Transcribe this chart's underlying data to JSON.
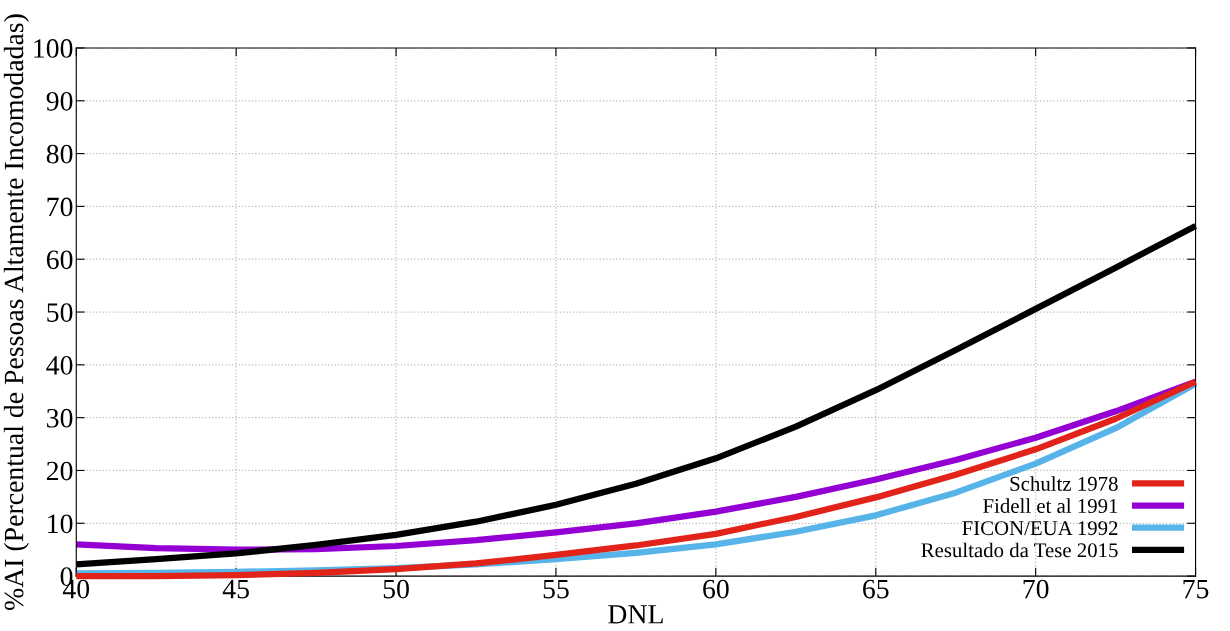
{
  "chart_data": {
    "type": "line",
    "xlabel": "DNL",
    "ylabel": "%AI (Percentual de Pessoas Altamente Incomodadas)",
    "x": [
      40,
      42.5,
      45,
      47.5,
      50,
      52.5,
      55,
      57.5,
      60,
      62.5,
      65,
      67.5,
      70,
      72.5,
      75
    ],
    "series": [
      {
        "name": "Schultz 1978",
        "color": "#e2231a",
        "values": [
          0,
          0,
          0.2,
          0.6,
          1.3,
          2.4,
          4,
          5.8,
          8,
          11.2,
          14.9,
          19.2,
          24,
          29.8,
          36.8
        ]
      },
      {
        "name": "Fidell et al 1991",
        "color": "#9400d3",
        "values": [
          6,
          5.3,
          5,
          5.1,
          5.7,
          6.8,
          8.3,
          10,
          12.2,
          15,
          18.3,
          22,
          26.2,
          31.2,
          36.8
        ]
      },
      {
        "name": "FICON/EUA 1992",
        "color": "#56b4e9",
        "values": [
          0.5,
          0.6,
          0.8,
          1.1,
          1.5,
          2.2,
          3.2,
          4.4,
          6,
          8.4,
          11.5,
          15.8,
          21.3,
          28,
          36.4
        ]
      },
      {
        "name": "Resultado da Tese 2015",
        "color": "#000000",
        "values": [
          2.2,
          3.2,
          4.3,
          5.9,
          7.8,
          10.3,
          13.5,
          17.5,
          22.3,
          28.3,
          35.2,
          42.8,
          50.6,
          58.4,
          66.3
        ]
      }
    ],
    "xlim": [
      40,
      75
    ],
    "xticks": [
      40,
      45,
      50,
      55,
      60,
      65,
      70,
      75
    ],
    "ylim": [
      0,
      100
    ],
    "yticks": [
      0,
      10,
      20,
      30,
      40,
      50,
      60,
      70,
      80,
      90,
      100
    ],
    "grid": true,
    "legend": "bottom right",
    "line_style": "solid",
    "marker": "none"
  }
}
